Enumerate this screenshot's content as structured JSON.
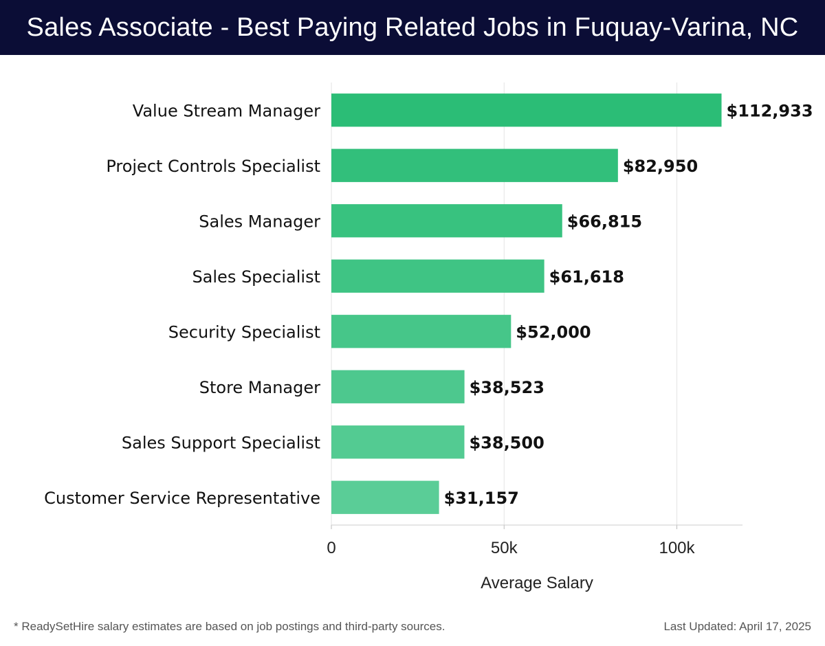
{
  "header": {
    "title": "Sales Associate - Best Paying Related Jobs in Fuquay-Varina, NC"
  },
  "chart_data": {
    "type": "bar",
    "orientation": "horizontal",
    "categories": [
      "Value Stream Manager",
      "Project Controls Specialist",
      "Sales Manager",
      "Sales Specialist",
      "Security Specialist",
      "Store Manager",
      "Sales Support Specialist",
      "Customer Service Representative"
    ],
    "values": [
      112933,
      82950,
      66815,
      61618,
      52000,
      38523,
      38500,
      31157
    ],
    "value_labels": [
      "$112,933",
      "$82,950",
      "$66,815",
      "$61,618",
      "$52,000",
      "$38,523",
      "$38,500",
      "$31,157"
    ],
    "xlabel": "Average Salary",
    "xticks": [
      0,
      50000,
      100000
    ],
    "xtick_labels": [
      "0",
      "50k",
      "100k"
    ],
    "xlim": [
      0,
      119000
    ],
    "grid": true,
    "bar_color_start": "#2bbd76",
    "bar_color_end": "#5acd97"
  },
  "footer": {
    "note": "* ReadySetHire salary estimates are based on job postings and third-party sources.",
    "updated": "Last Updated: April 17, 2025"
  }
}
